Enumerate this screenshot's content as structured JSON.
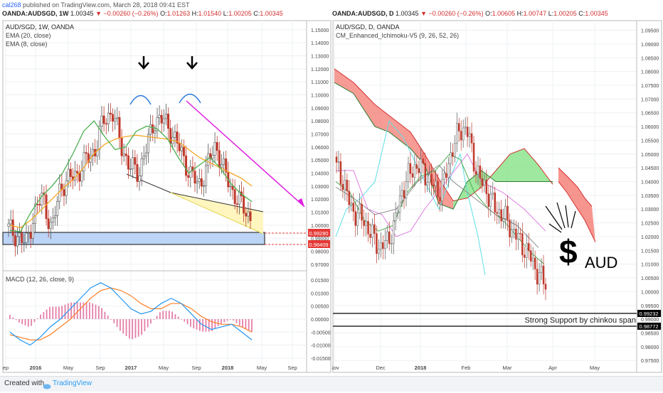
{
  "header": {
    "publisher": "cal268",
    "published_text": "published on TradingView.com, March 28, 2018 09:41 EST"
  },
  "left_ohlc": {
    "symbol": "OANDA:AUDSGD, 1W",
    "price": "1.00345",
    "change": "▼ −0.00260 (−0.26%)",
    "o_label": "O:",
    "o": "1.01263",
    "h_label": "H:",
    "h": "1.01540",
    "l_label": "L:",
    "l": "1.00205",
    "c_label": "C:",
    "c": "1.00345"
  },
  "right_ohlc": {
    "symbol": "OANDA:AUDSGD, D",
    "price": "1.00345",
    "change": "▼ −0.00260 (−0.26%)",
    "o_label": "O:",
    "o": "1.00605",
    "h_label": "H:",
    "h": "1.00747",
    "l_label": "L:",
    "l": "1.00205",
    "c_label": "C:",
    "c": "1.00345"
  },
  "left_legend": {
    "title": "AUD/SGD, 1W, OANDA",
    "ema20": "EMA (20, close)",
    "ema8": "EMA (8, close)"
  },
  "right_legend": {
    "title": "AUD/SGD, D, OANDA",
    "ichimoku": "CM_Enhanced_Ichimoku-V5 (9, 26, 52, 26)"
  },
  "macd_legend": "MACD (12, 26, close, 9)",
  "annotations": {
    "support_text": "Strong Support by chinkou span",
    "aud_dollar": "$",
    "aud_text": "AUD"
  },
  "price_tags_left": [
    "0.99280",
    "0.98409"
  ],
  "price_tags_right": [
    "0.99232",
    "0.98772"
  ],
  "footer": {
    "created_with": "Created with",
    "brand": "TradingView"
  },
  "colors": {
    "up": "#26a69a",
    "down": "#ef5350",
    "ema20": "#f6a623",
    "ema8": "#4caf50",
    "magenta": "#e01ee0",
    "cloud_bear": "#ef5350",
    "cloud_bull": "#66dd66",
    "tag_red": "#e53935",
    "macd_line": "#2196f3",
    "signal": "#ff7f27"
  },
  "chart_data": [
    {
      "type": "line",
      "title": "AUD/SGD, 1W, OANDA",
      "x_ticks": [
        "ep",
        "2016",
        "May",
        "Sep",
        "2017",
        "May",
        "Sep",
        "2018",
        "May",
        "Sep"
      ],
      "y_ticks": [
        "0.97000",
        "0.98000",
        "0.99000",
        "1.00000",
        "1.01000",
        "1.02000",
        "1.03000",
        "1.04000",
        "1.05000",
        "1.06000",
        "1.07000",
        "1.08000",
        "1.09000",
        "1.10000",
        "1.11000",
        "1.12000",
        "1.13000",
        "1.14000",
        "1.15000"
      ],
      "ylim": [
        0.965,
        1.157
      ],
      "series": [
        {
          "name": "EMA (20, close)",
          "values": [
            1.0,
            0.998,
            1.004,
            1.012,
            1.02,
            1.028,
            1.035,
            1.044,
            1.055,
            1.062,
            1.066,
            1.068,
            1.069,
            1.068,
            1.067,
            1.066,
            1.064,
            1.058,
            1.052,
            1.048,
            1.044,
            1.04,
            1.036,
            1.03
          ]
        },
        {
          "name": "EMA (8, close)",
          "values": [
            0.996,
            0.995,
            1.01,
            1.022,
            1.03,
            1.04,
            1.055,
            1.072,
            1.08,
            1.068,
            1.058,
            1.06,
            1.072,
            1.076,
            1.074,
            1.066,
            1.052,
            1.04,
            1.046,
            1.052,
            1.044,
            1.032,
            1.024,
            1.018
          ]
        }
      ],
      "closes": [
        0.997,
        0.992,
        0.985,
        1.01,
        1.022,
        0.995,
        1.03,
        1.035,
        1.04,
        1.05,
        1.058,
        1.08,
        1.088,
        1.062,
        1.045,
        1.04,
        1.06,
        1.082,
        1.08,
        1.07,
        1.055,
        1.04,
        1.03,
        1.045,
        1.062,
        1.04,
        1.025,
        1.015,
        1.006
      ]
    },
    {
      "type": "line",
      "title": "MACD (12, 26, close, 9)",
      "y_ticks": [
        "0.01500",
        "0.01000",
        "0.00500",
        "0.00000",
        "-0.00500",
        "-0.01000",
        "-0.01500"
      ],
      "ylim": [
        -0.0175,
        0.0175
      ],
      "series": [
        {
          "name": "MACD",
          "values": [
            -0.005,
            -0.008,
            -0.01,
            -0.007,
            -0.003,
            0.0,
            0.004,
            0.008,
            0.012,
            0.014,
            0.012,
            0.008,
            0.004,
            0.002,
            0.003,
            0.006,
            0.008,
            0.006,
            0.002,
            -0.002,
            -0.004,
            -0.003,
            -0.002,
            -0.005,
            -0.008
          ]
        },
        {
          "name": "Signal",
          "values": [
            -0.006,
            -0.007,
            -0.008,
            -0.008,
            -0.006,
            -0.003,
            0.0,
            0.004,
            0.008,
            0.011,
            0.012,
            0.011,
            0.009,
            0.006,
            0.004,
            0.004,
            0.006,
            0.006,
            0.004,
            0.001,
            -0.001,
            -0.002,
            -0.002,
            -0.003,
            -0.005
          ]
        }
      ]
    },
    {
      "type": "line",
      "title": "AUD/SGD, D, OANDA",
      "x_ticks": [
        "Nov",
        "Dec",
        "2018",
        "Feb",
        "Mar",
        "Apr",
        "May"
      ],
      "y_ticks": [
        "0.97500",
        "0.98000",
        "0.98500",
        "0.99000",
        "0.99500",
        "1.00000",
        "1.00500",
        "1.01000",
        "1.01500",
        "1.02000",
        "1.02500",
        "1.03000",
        "1.03500",
        "1.04000",
        "1.04500",
        "1.05000",
        "1.05500",
        "1.06000",
        "1.06500",
        "1.07000",
        "1.07500",
        "1.08000",
        "1.08500",
        "1.09000",
        "1.09500"
      ],
      "ylim": [
        0.9735,
        1.0985
      ],
      "closes": [
        1.045,
        1.04,
        1.03,
        1.028,
        1.025,
        1.02,
        1.016,
        1.018,
        1.024,
        1.036,
        1.042,
        1.046,
        1.044,
        1.04,
        1.036,
        1.04,
        1.052,
        1.058,
        1.06,
        1.048,
        1.04,
        1.036,
        1.03,
        1.028,
        1.024,
        1.02,
        1.016,
        1.012,
        1.006,
        1.003
      ]
    }
  ]
}
